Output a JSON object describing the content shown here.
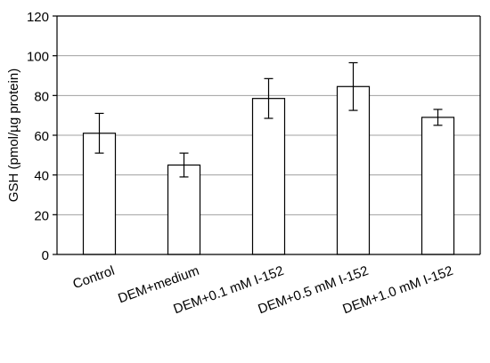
{
  "chart_data": {
    "type": "bar",
    "categories": [
      "Control",
      "DEM+medium",
      "DEM+0.1 mM I-152",
      "DEM+0.5 mM I-152",
      "DEM+1.0 mM I-152"
    ],
    "values": [
      61,
      45,
      78.5,
      84.5,
      69
    ],
    "error": [
      10,
      6,
      10,
      12,
      4
    ],
    "title": "",
    "xlabel": "",
    "ylabel": "GSH (pmol/µg protein)",
    "ylim": [
      0,
      120
    ],
    "yticks": [
      0,
      20,
      40,
      60,
      80,
      100,
      120
    ],
    "grid": true,
    "legend": "none",
    "colors": {
      "bar_fill": "#ffffff",
      "bar_stroke": "#000000",
      "grid": "#a0a0a0",
      "axis": "#000000"
    }
  }
}
